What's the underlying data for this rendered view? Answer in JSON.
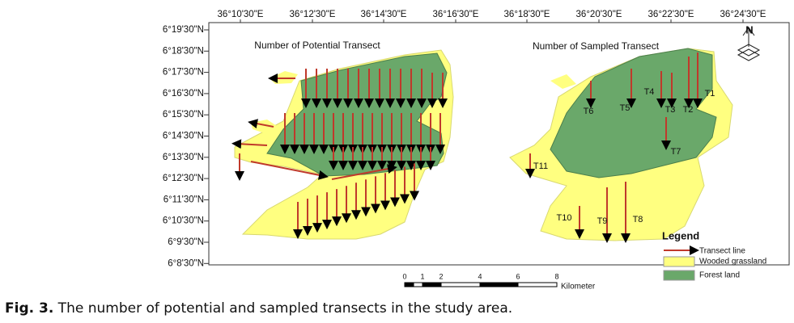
{
  "map": {
    "top_labels": [
      "36°10'30\"E",
      "36°12'30\"E",
      "36°14'30\"E",
      "36°16'30\"E",
      "36°18'30\"E",
      "36°20'30\"E",
      "36°22'30\"E",
      "36°24'30\"E"
    ],
    "left_labels": [
      "6°19'30\"N",
      "6°18'30\"N",
      "6°17'30\"N",
      "6°16'30\"N",
      "6°15'30\"N",
      "6°14'30\"N",
      "6°13'30\"N",
      "6°12'30\"N",
      "6°11'30\"N",
      "6°10'30\"N",
      "6°9'30\"N",
      "6°8'30\"N"
    ],
    "panels": [
      {
        "title": "Number of Potential Transect"
      },
      {
        "title": "Number of Sampled Transect",
        "transects": [
          "T1",
          "T2",
          "T3",
          "T4",
          "T5",
          "T6",
          "T7",
          "T8",
          "T9",
          "T10",
          "T11"
        ]
      }
    ],
    "north": "N",
    "legend": {
      "title": "Legend",
      "items": [
        "Transect line",
        "Wooded grassland",
        "Forest land"
      ]
    },
    "scale": {
      "ticks": [
        "0",
        "1",
        "2",
        "4",
        "6",
        "8"
      ],
      "unit": "Kilometer"
    }
  },
  "caption": {
    "label": "Fig. 3.",
    "text": " The number of potential and sampled transects in the study area."
  }
}
